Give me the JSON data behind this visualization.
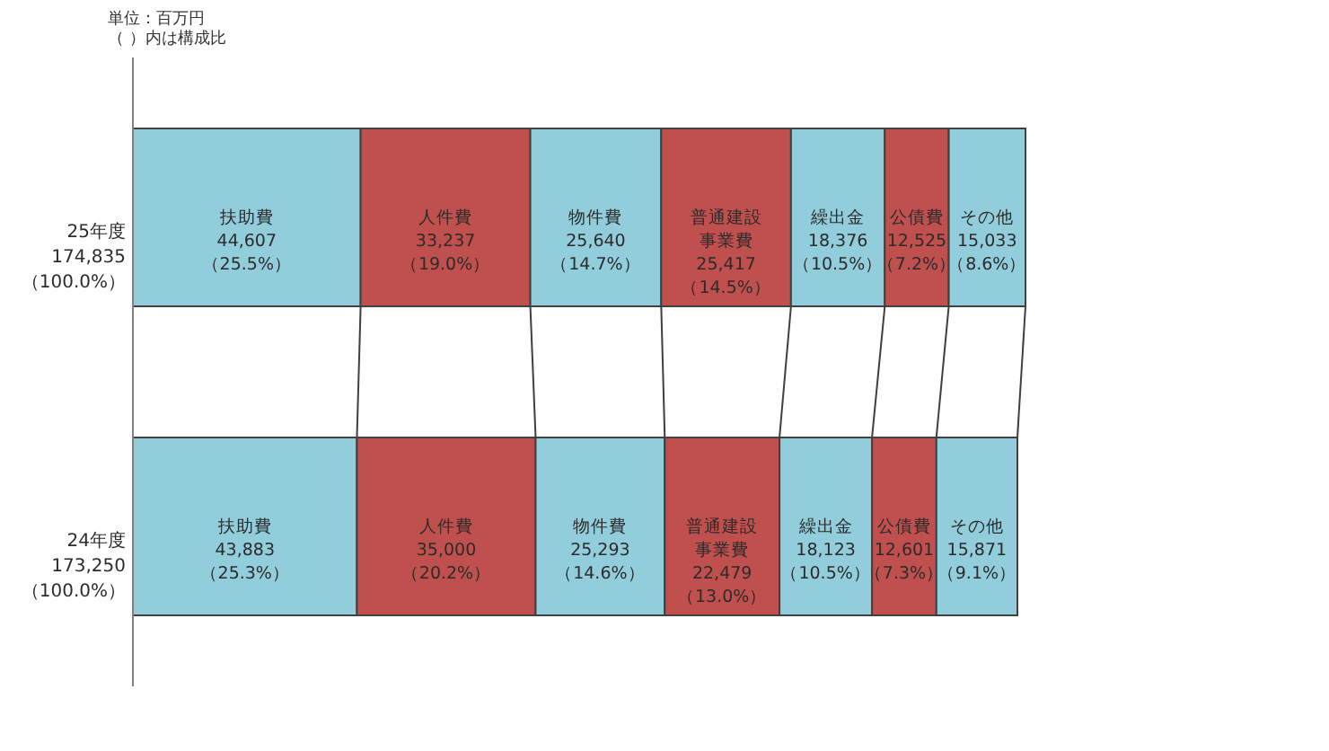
{
  "chart_data": {
    "type": "bar",
    "orientation": "horizontal",
    "stacked": true,
    "annotations": [
      "単位：百万円",
      "（ ）内は構成比"
    ],
    "categories": [
      "25年度",
      "24年度"
    ],
    "totals": [
      "174,835\n（100.0%）",
      "173,250\n（100.0%）"
    ],
    "series": [
      {
        "name": "扶助費",
        "color": "#92cddc",
        "values": [
          44607,
          43883
        ],
        "value_labels": [
          "44,607\n（25.5%）",
          "43,883\n（25.3%）"
        ]
      },
      {
        "name": "人件費",
        "color": "#c0504d",
        "values": [
          33237,
          35000
        ],
        "value_labels": [
          "33,237\n（19.0%）",
          "35,000\n（20.2%）"
        ]
      },
      {
        "name": "物件費",
        "color": "#92cddc",
        "values": [
          25640,
          25293
        ],
        "value_labels": [
          "25,640\n（14.7%）",
          "25,293\n（14.6%）"
        ]
      },
      {
        "name": "普通建設事業費",
        "color": "#c0504d",
        "values": [
          25417,
          22479
        ],
        "value_labels": [
          "25,417\n（14.5%）",
          "22,479\n（13.0%）"
        ]
      },
      {
        "name": "繰出金",
        "color": "#92cddc",
        "values": [
          18376,
          18123
        ],
        "value_labels": [
          "18,376\n（10.5%）",
          "18,123\n（10.5%）"
        ]
      },
      {
        "name": "公債費",
        "color": "#c0504d",
        "values": [
          12525,
          12601
        ],
        "value_labels": [
          "12,525\n（7.2%）",
          "12,601\n（7.3%）"
        ]
      },
      {
        "name": "その他",
        "color": "#92cddc",
        "values": [
          15033,
          15871
        ],
        "value_labels": [
          "15,033\n（8.6%）",
          "15,871\n（9.1%）"
        ]
      }
    ]
  }
}
